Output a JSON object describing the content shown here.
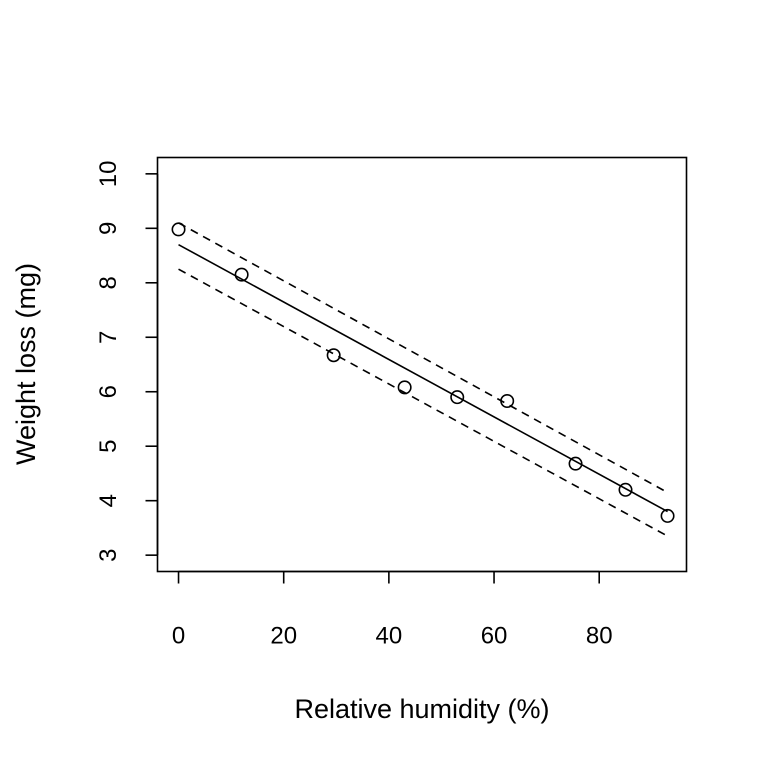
{
  "chart_data": {
    "type": "scatter",
    "title": "",
    "xlabel": "Relative humidity (%)",
    "ylabel": "Weight loss (mg)",
    "xlim": [
      -4,
      96.6
    ],
    "ylim": [
      2.7,
      10.3
    ],
    "x_ticks": [
      0,
      20,
      40,
      60,
      80
    ],
    "y_ticks": [
      3,
      4,
      5,
      6,
      7,
      8,
      9,
      10
    ],
    "x_tick_labels": [
      "0",
      "20",
      "40",
      "60",
      "80"
    ],
    "y_tick_labels": [
      "3",
      "4",
      "5",
      "6",
      "7",
      "8",
      "9",
      "10"
    ],
    "grid": false,
    "legend": "none",
    "points": [
      {
        "x": 0,
        "y": 8.98
      },
      {
        "x": 12,
        "y": 8.15
      },
      {
        "x": 29.5,
        "y": 6.67
      },
      {
        "x": 43,
        "y": 6.08
      },
      {
        "x": 53,
        "y": 5.9
      },
      {
        "x": 62.5,
        "y": 5.83
      },
      {
        "x": 75.5,
        "y": 4.68
      },
      {
        "x": 85,
        "y": 4.2
      },
      {
        "x": 93,
        "y": 3.72
      }
    ],
    "fit_line": {
      "x": [
        0,
        93
      ],
      "y": [
        8.7,
        3.8
      ]
    },
    "upper_band": {
      "x": [
        0,
        93
      ],
      "y": [
        9.1,
        4.15
      ]
    },
    "lower_band": {
      "x": [
        0,
        93
      ],
      "y": [
        8.25,
        3.35
      ]
    }
  }
}
